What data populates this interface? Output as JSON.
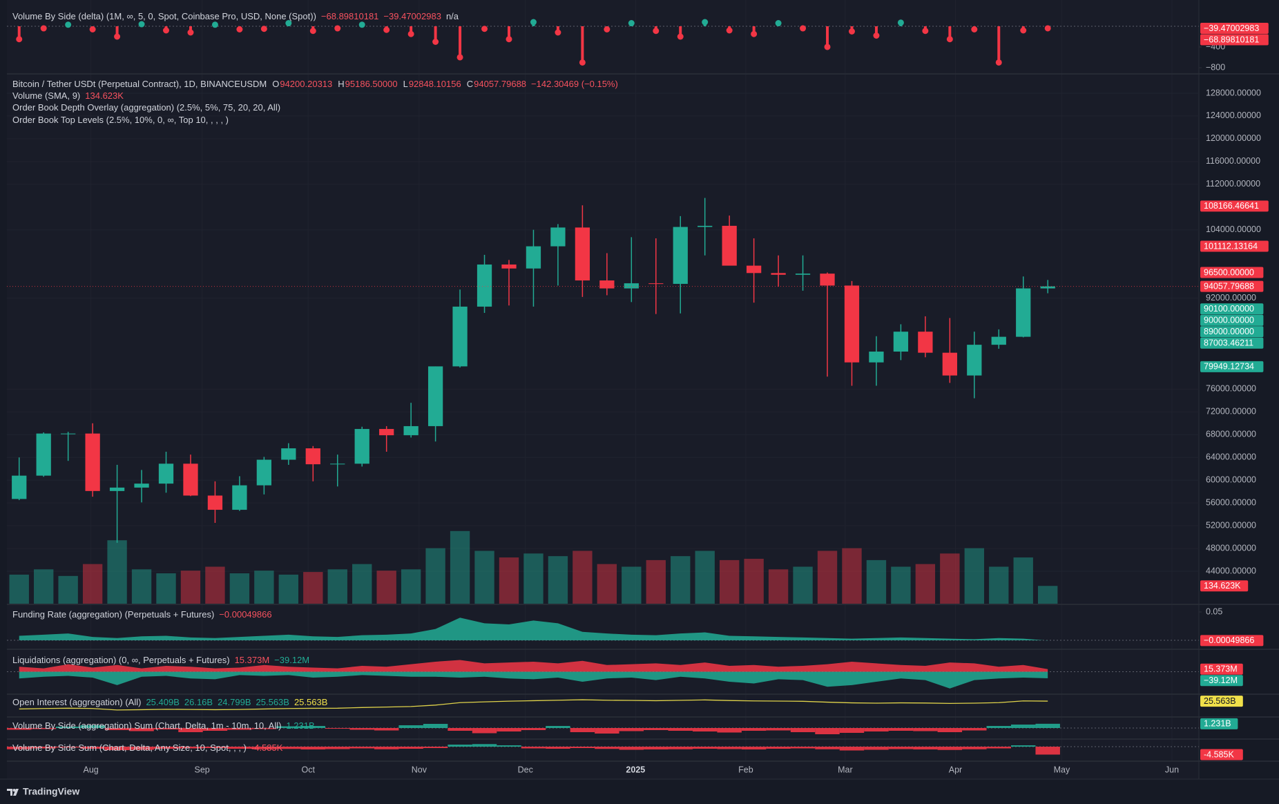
{
  "chart_data": [
    {
      "type": "lollipop",
      "legend": [
        [
          {
            "text": "Volume By Side (delta) (1M, ∞, 5, 0, Spot, Coinbase Pro, USD, None (Spot))",
            "color": "#d1d4dc"
          },
          {
            "text": "−68.89810181",
            "color": "#f7525f"
          },
          {
            "text": "−39.47002983",
            "color": "#f7525f"
          },
          {
            "text": "n/a",
            "color": "#d1d4dc"
          }
        ]
      ],
      "values": [
        -250,
        -40,
        30,
        -60,
        -200,
        40,
        -80,
        -120,
        30,
        -60,
        -50,
        60,
        -90,
        -40,
        30,
        -70,
        -150,
        -300,
        -600,
        -50,
        -250,
        80,
        -120,
        -700,
        -60,
        60,
        -90,
        -200,
        80,
        -80,
        -150,
        60,
        -40,
        -400,
        -100,
        -180,
        70,
        -90,
        -250,
        -60,
        -700,
        -80,
        -39.47002983
      ],
      "up_color": "#22ab94",
      "down_color": "#f23645",
      "ylim": [
        -907,
        507
      ],
      "yticks": [
        {
          "value": -400,
          "label": "−400"
        },
        {
          "value": -800,
          "label": "−800"
        }
      ],
      "badges": [
        {
          "value": -39.47002983,
          "label": "−39.47002983",
          "color": "#f23645"
        },
        {
          "value": -68.89810181,
          "label": "−68.89810181",
          "color": "#f23645"
        }
      ]
    },
    {
      "type": "candlestick",
      "legend": [
        [
          {
            "text": "Bitcoin / Tether USDt (Perpetual Contract), 1D, BINANCEUSDM",
            "color": "#d1d4dc"
          },
          {
            "text": "O",
            "color": "#d1d4dc"
          },
          {
            "text": "94200.20313",
            "color": "#f7525f"
          },
          {
            "text": "H",
            "color": "#d1d4dc"
          },
          {
            "text": "95186.50000",
            "color": "#f7525f"
          },
          {
            "text": "L",
            "color": "#d1d4dc"
          },
          {
            "text": "92848.10156",
            "color": "#f7525f"
          },
          {
            "text": "C",
            "color": "#d1d4dc"
          },
          {
            "text": "94057.79688",
            "color": "#f7525f"
          },
          {
            "text": "−142.30469 (−0.15%)",
            "color": "#f7525f"
          }
        ],
        [
          {
            "text": "Volume (SMA, 9)",
            "color": "#d1d4dc"
          },
          {
            "text": "134.623K",
            "color": "#f7525f"
          }
        ],
        [
          {
            "text": "Order Book Depth Overlay (aggregation) (2.5%, 5%, 75, 20, 20, All)",
            "color": "#d1d4dc"
          }
        ],
        [
          {
            "text": "Order Book Top Levels (2.5%, 10%, 0, ∞, Top 10, , , , )",
            "color": "#d1d4dc"
          }
        ]
      ],
      "open": [
        56700,
        60800,
        68200,
        68200,
        58100,
        58700,
        59400,
        62900,
        57300,
        54800,
        59100,
        63600,
        65600,
        62800,
        62900,
        69000,
        67900,
        69500,
        80000,
        90500,
        97900,
        97200,
        101100,
        104400,
        95100,
        93700,
        94600,
        94500,
        104500,
        104700,
        97700,
        96400,
        96100,
        96300,
        94200,
        80700,
        82600,
        86100,
        82400,
        78400,
        83800,
        85200,
        93700
      ],
      "high": [
        64000,
        68400,
        68500,
        70000,
        62700,
        61800,
        65000,
        64500,
        59800,
        60700,
        64100,
        66500,
        66000,
        64500,
        69400,
        69500,
        73600,
        80000,
        93500,
        99600,
        98700,
        104000,
        105000,
        108300,
        99900,
        102700,
        102500,
        106400,
        109600,
        106500,
        102500,
        99500,
        99500,
        96500,
        95000,
        85300,
        87400,
        88800,
        88500,
        86100,
        86500,
        95800,
        95186.5
      ],
      "low": [
        56500,
        60600,
        63400,
        57100,
        49000,
        56100,
        57800,
        57200,
        52500,
        54600,
        57500,
        62700,
        59800,
        58900,
        62400,
        65000,
        67500,
        66800,
        79800,
        89400,
        90700,
        90500,
        94200,
        92200,
        92500,
        91300,
        89200,
        89300,
        99500,
        97800,
        91200,
        94000,
        93300,
        78200,
        76600,
        76600,
        81100,
        81600,
        77100,
        74400,
        83100,
        85100,
        92848.1
      ],
      "close": [
        60800,
        68200,
        68200,
        58100,
        58700,
        59400,
        62900,
        57300,
        54800,
        59100,
        63600,
        65600,
        62800,
        62900,
        69000,
        67900,
        69500,
        80000,
        90500,
        97900,
        97200,
        101100,
        104400,
        95100,
        93700,
        94600,
        94500,
        104500,
        104700,
        97700,
        96400,
        96100,
        96300,
        94200,
        80700,
        82600,
        86100,
        82400,
        78400,
        83800,
        85200,
        93700,
        94057.79688
      ],
      "volume": [
        220,
        260,
        210,
        300,
        480,
        260,
        230,
        250,
        280,
        230,
        250,
        220,
        240,
        260,
        300,
        250,
        260,
        420,
        550,
        400,
        350,
        380,
        360,
        400,
        300,
        280,
        330,
        360,
        400,
        330,
        340,
        260,
        280,
        400,
        420,
        330,
        280,
        300,
        380,
        420,
        280,
        350,
        134.623
      ],
      "volume_ylim": [
        0,
        4000
      ],
      "up_color": "#22ab94",
      "down_color": "#f23645",
      "ylim": [
        38300,
        131150
      ],
      "yticks": [
        {
          "value": 128000,
          "label": "128000.00000"
        },
        {
          "value": 124000,
          "label": "124000.00000"
        },
        {
          "value": 120000,
          "label": "120000.00000"
        },
        {
          "value": 116000,
          "label": "116000.00000"
        },
        {
          "value": 112000,
          "label": "112000.00000"
        },
        {
          "value": 104000,
          "label": "104000.00000"
        },
        {
          "value": 92000,
          "label": "92000.00000"
        },
        {
          "value": 76000,
          "label": "76000.00000"
        },
        {
          "value": 72000,
          "label": "72000.00000"
        },
        {
          "value": 68000,
          "label": "68000.00000"
        },
        {
          "value": 64000,
          "label": "64000.00000"
        },
        {
          "value": 60000,
          "label": "60000.00000"
        },
        {
          "value": 56000,
          "label": "56000.00000"
        },
        {
          "value": 52000,
          "label": "52000.00000"
        },
        {
          "value": 48000,
          "label": "48000.00000"
        },
        {
          "value": 44000,
          "label": "44000.00000"
        }
      ],
      "xlim": [
        -0.5,
        48.17
      ],
      "xticks": [
        {
          "value": 2.93,
          "label": "Aug"
        },
        {
          "value": 7.47,
          "label": "Sep"
        },
        {
          "value": 11.8,
          "label": "Oct"
        },
        {
          "value": 16.33,
          "label": "Nov"
        },
        {
          "value": 20.67,
          "label": "Dec"
        },
        {
          "value": 25.17,
          "label": "2025",
          "bold": true
        },
        {
          "value": 29.67,
          "label": "Feb"
        },
        {
          "value": 33.73,
          "label": "Mar"
        },
        {
          "value": 38.23,
          "label": "Apr"
        },
        {
          "value": 42.57,
          "label": "May"
        },
        {
          "value": 47.07,
          "label": "Jun"
        }
      ],
      "badges": [
        {
          "value": 108166.46641,
          "label": "108166.46641",
          "color": "#f23645"
        },
        {
          "value": 101112.13164,
          "label": "101112.13164",
          "color": "#f23645"
        },
        {
          "value": 96500,
          "label": "96500.00000",
          "color": "#f23645"
        },
        {
          "value": 94057.79688,
          "label": "94057.79688",
          "color": "#f23645"
        },
        {
          "value": 90100,
          "label": "90100.00000",
          "color": "#22ab94"
        },
        {
          "value": 90000,
          "label": "90000.00000",
          "color": "#22ab94"
        },
        {
          "value": 89000,
          "label": "89000.00000",
          "color": "#22ab94"
        },
        {
          "value": 87003.46211,
          "label": "87003.46211",
          "color": "#22ab94"
        },
        {
          "value": 79949.12734,
          "label": "79949.12734",
          "color": "#22ab94"
        }
      ],
      "volume_badge": {
        "value": 134.623,
        "label": "134.623K",
        "color": "#f23645"
      }
    },
    {
      "type": "area",
      "legend": [
        [
          {
            "text": "Funding Rate (aggregation) (Perpetuals + Futures)",
            "color": "#d1d4dc"
          },
          {
            "text": "−0.00049866",
            "color": "#f7525f"
          }
        ]
      ],
      "series": [
        {
          "color": "#22ab94",
          "values": [
            0.008,
            0.01,
            0.012,
            0.006,
            0.004,
            0.007,
            0.008,
            0.005,
            0.004,
            0.006,
            0.008,
            0.01,
            0.007,
            0.006,
            0.009,
            0.01,
            0.012,
            0.02,
            0.04,
            0.03,
            0.028,
            0.035,
            0.03,
            0.015,
            0.012,
            0.01,
            0.009,
            0.012,
            0.014,
            0.008,
            0.007,
            0.006,
            0.005,
            0.004,
            0.003,
            0.004,
            0.005,
            0.004,
            0.003,
            0.002,
            0.004,
            0.003,
            -0.00049866
          ]
        }
      ],
      "ylim": [
        -0.0146,
        0.0622
      ],
      "yticks": [
        0.05
      ],
      "badges": [
        {
          "value": -0.00049866,
          "label": "−0.00049866",
          "color": "#f23645"
        }
      ]
    },
    {
      "type": "area",
      "legend": [
        [
          {
            "text": "Liquidations (aggregation) (0, ∞, Perpetuals + Futures)",
            "color": "#d1d4dc"
          },
          {
            "text": "15.373M",
            "color": "#f7525f"
          },
          {
            "text": "−39.12M",
            "color": "#22ab94"
          }
        ]
      ],
      "series": [
        {
          "color": "#f23645",
          "values": [
            30,
            20,
            45,
            25,
            40,
            20,
            35,
            30,
            20,
            25,
            40,
            30,
            25,
            20,
            35,
            30,
            45,
            60,
            70,
            50,
            55,
            60,
            50,
            65,
            40,
            45,
            50,
            40,
            55,
            35,
            40,
            30,
            35,
            45,
            60,
            50,
            40,
            35,
            55,
            50,
            30,
            40,
            15.373
          ]
        },
        {
          "color": "#22ab94",
          "values": [
            -40,
            -30,
            -25,
            -35,
            -80,
            -30,
            -25,
            -40,
            -45,
            -20,
            -25,
            -20,
            -35,
            -30,
            -20,
            -25,
            -30,
            -30,
            -35,
            -30,
            -40,
            -45,
            -35,
            -60,
            -40,
            -35,
            -50,
            -30,
            -40,
            -60,
            -70,
            -45,
            -50,
            -90,
            -80,
            -60,
            -40,
            -50,
            -100,
            -50,
            -40,
            -35,
            -39.12
          ]
        }
      ],
      "ylim": [
        -130,
        130
      ],
      "badges": [
        {
          "value": 15.373,
          "label": "15.373M",
          "color": "#f23645"
        },
        {
          "value": -39.12,
          "label": "−39.12M",
          "color": "#22ab94"
        }
      ]
    },
    {
      "type": "line",
      "legend": [
        [
          {
            "text": "Open Interest (aggregation) (All)",
            "color": "#d1d4dc"
          },
          {
            "text": "25.409B",
            "color": "#22ab94"
          },
          {
            "text": "26.16B",
            "color": "#22ab94"
          },
          {
            "text": "24.799B",
            "color": "#22ab94"
          },
          {
            "text": "25.563B",
            "color": "#22ab94"
          },
          {
            "text": "25.563B",
            "color": "#f0e04a"
          }
        ]
      ],
      "series": [
        {
          "color": "#e0d34a",
          "values": [
            17.5,
            18,
            18.3,
            18,
            16.5,
            16.8,
            17.2,
            17,
            16.8,
            17,
            17.5,
            18,
            18.2,
            18.3,
            19,
            19.5,
            20,
            21.5,
            24,
            24.8,
            25.5,
            26,
            26.5,
            27,
            26.5,
            26.3,
            26,
            26.4,
            26.8,
            26.2,
            25.8,
            25.6,
            25.4,
            24.5,
            23.8,
            23.5,
            23.8,
            23.6,
            23.2,
            23.5,
            24,
            25.8,
            25.563
          ]
        }
      ],
      "ylim": [
        10,
        32
      ],
      "badges": [
        {
          "value": 25.563,
          "label": "25.563B",
          "color": "#f0e04a"
        }
      ]
    },
    {
      "type": "column",
      "legend": [
        [
          {
            "text": "Volume By Side (aggregation) Sum (Chart, Delta, 1m - 10m, 10, All)",
            "color": "#d1d4dc"
          },
          {
            "text": "1.231B",
            "color": "#22ab94"
          }
        ]
      ],
      "values": [
        -0.5,
        -0.3,
        0.4,
        0.8,
        -0.6,
        -0.9,
        -0.4,
        -1.2,
        -0.8,
        -0.5,
        -0.3,
        0.5,
        0.6,
        -0.2,
        -0.5,
        -0.7,
        0.8,
        1.2,
        -0.8,
        -1.5,
        -1,
        -0.6,
        0.6,
        -1.2,
        -1.6,
        -0.9,
        -0.6,
        -0.8,
        -1,
        -1.3,
        -0.8,
        -0.7,
        -1.2,
        -1.8,
        -1.4,
        -1,
        -0.8,
        -0.9,
        -1.2,
        -0.7,
        0.6,
        1,
        1.231
      ],
      "up_color": "#22ab94",
      "down_color": "#f23645",
      "ylim": [
        -3,
        3
      ],
      "badges": [
        {
          "value": 1.231,
          "label": "1.231B",
          "color": "#22ab94"
        }
      ]
    },
    {
      "type": "column",
      "legend": [
        [
          {
            "text": "Volume By Side Sum (Chart, Delta, Any Size, 10, Spot, , , )",
            "color": "#d1d4dc"
          },
          {
            "text": "-4.585K",
            "color": "#f7525f"
          }
        ]
      ],
      "values": [
        -1.5,
        -1,
        -0.5,
        -1.2,
        -2,
        -1.8,
        -1.2,
        -1,
        -0.8,
        -1.2,
        -1.5,
        -1.3,
        -1.6,
        -1.4,
        -1,
        -1.5,
        -1.2,
        -0.8,
        1.2,
        1.5,
        0.8,
        -1,
        -1.2,
        -0.8,
        -1.3,
        -1.8,
        -1.6,
        -1.5,
        -1.2,
        -1.4,
        -1.6,
        -1.2,
        -1,
        -1.5,
        -2.2,
        -1.8,
        -1.4,
        -1.6,
        -1.9,
        -1.5,
        -1,
        0.8,
        -4.585
      ],
      "up_color": "#22ab94",
      "down_color": "#f23645",
      "ylim": [
        -8,
        4
      ],
      "badges": [
        {
          "value": -4.585,
          "label": "-4.585K",
          "color": "#f23645"
        }
      ]
    }
  ],
  "footer": {
    "brand": "TradingView"
  }
}
